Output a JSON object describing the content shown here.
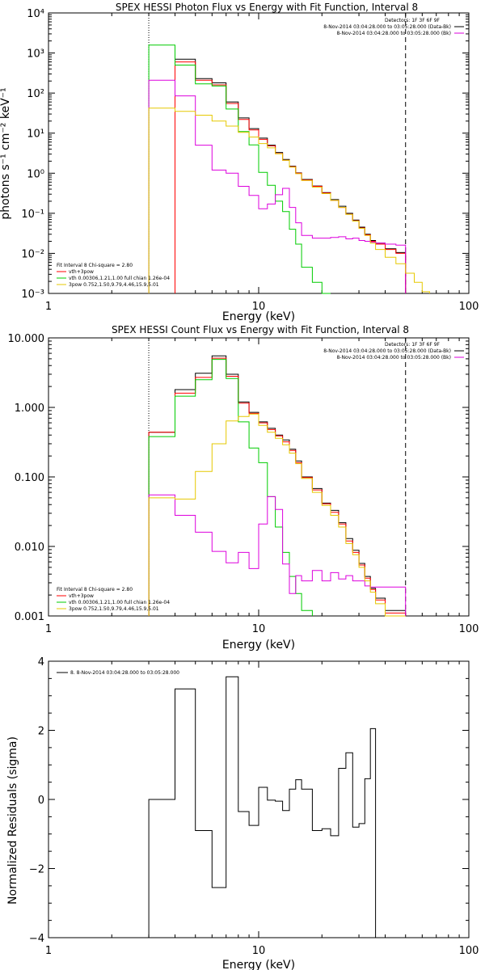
{
  "chart_data": [
    {
      "type": "line",
      "title": "SPEX HESSI Photon Flux vs Energy with Fit Function, Interval 8",
      "xlabel": "Energy (keV)",
      "ylabel": "photons s⁻¹ cm⁻² keV⁻¹",
      "xscale": "log",
      "yscale": "log",
      "xlim": [
        1,
        100
      ],
      "ylim": [
        0.001,
        10000
      ],
      "xticks": [
        {
          "v": 1,
          "label": "1"
        },
        {
          "v": 10,
          "label": "10"
        },
        {
          "v": 100,
          "label": "100"
        }
      ],
      "yticks": [
        {
          "v": 0.001,
          "label": "10⁻³"
        },
        {
          "v": 0.01,
          "label": "10⁻²"
        },
        {
          "v": 0.1,
          "label": "10⁻¹"
        },
        {
          "v": 1,
          "label": "10⁰"
        },
        {
          "v": 10,
          "label": "10¹"
        },
        {
          "v": 100,
          "label": "10²"
        },
        {
          "v": 1000,
          "label": "10³"
        },
        {
          "v": 10000,
          "label": "10⁴"
        }
      ],
      "vlines": [
        {
          "x": 3,
          "style": "dotted"
        },
        {
          "x": 50,
          "style": "dashed"
        }
      ],
      "edges": [
        3,
        4,
        5,
        6,
        7,
        8,
        9,
        10,
        11,
        12,
        13,
        14,
        15,
        16,
        18,
        20,
        22,
        24,
        26,
        28,
        30,
        32,
        34,
        36,
        40,
        45,
        50,
        55,
        60,
        65
      ],
      "series": [
        {
          "name": "",
          "color": "#000000",
          "values": [
            null,
            700,
            230,
            180,
            60,
            24,
            13,
            7.5,
            5.0,
            3.3,
            2.2,
            1.5,
            1.02,
            0.7,
            0.48,
            0.33,
            0.22,
            0.15,
            0.1,
            0.068,
            0.045,
            0.03,
            0.021,
            0.018,
            0.013,
            0.0105,
            null,
            null,
            null
          ]
        },
        {
          "name": "",
          "color": "#ff0000",
          "values": [
            null,
            600,
            210,
            160,
            55,
            22,
            12,
            7.0,
            4.8,
            3.1,
            2.1,
            1.45,
            1.0,
            0.68,
            0.47,
            0.32,
            0.21,
            0.14,
            0.095,
            0.065,
            0.043,
            0.029,
            0.02,
            0.017,
            0.0125,
            0.01,
            null,
            null,
            null
          ]
        },
        {
          "name": "",
          "color": "#00cc00",
          "values": [
            1580,
            500,
            170,
            150,
            40,
            11,
            5.1,
            1.05,
            0.5,
            0.2,
            0.11,
            0.04,
            0.017,
            0.0045,
            0.0019,
            0.0005,
            null,
            null,
            null,
            null,
            null,
            null,
            null,
            null,
            null,
            null,
            null,
            null,
            null
          ]
        },
        {
          "name": "",
          "color": "#dd00dd",
          "values": [
            210,
            85,
            5.0,
            1.2,
            1.0,
            0.47,
            0.28,
            0.13,
            0.17,
            0.29,
            0.42,
            0.14,
            0.058,
            0.028,
            0.024,
            0.024,
            0.025,
            0.026,
            0.023,
            0.024,
            0.021,
            0.02,
            0.019,
            0.018,
            0.017,
            0.016,
            null,
            null,
            null
          ]
        },
        {
          "name": "",
          "color": "#e6c800",
          "values": [
            42,
            35,
            28,
            20,
            15,
            10.5,
            8.0,
            5.5,
            4.3,
            3.05,
            2.1,
            1.42,
            0.97,
            0.66,
            0.45,
            0.31,
            0.21,
            0.14,
            0.094,
            0.064,
            0.042,
            0.028,
            0.018,
            0.0125,
            0.008,
            0.0055,
            0.0032,
            0.0019,
            0.0011
          ]
        }
      ],
      "legend_top": {
        "text": "Detectors: 1F 3F 6F 9F",
        "entries": [
          {
            "color": "#000000",
            "label": "8-Nov-2014 03:04:28.000 to 03:05:28.000 (Data-Bk)"
          },
          {
            "color": "#dd00dd",
            "label": "8-Nov-2014 03:04:28.000 to 03:05:28.000 (Bk)"
          }
        ]
      },
      "legend_bottom": {
        "text": "Fit Interval 8   Chi-square = 2.80",
        "entries": [
          {
            "color": "#ff0000",
            "label": "vth+3pow"
          },
          {
            "color": "#00cc00",
            "label": "vth 0.00306,1.21,1.00  full chian 1.26e-04"
          },
          {
            "color": "#e6c800",
            "label": "3pow 0.752,1.50,9.79,4.46,15.9,5.01"
          }
        ]
      }
    },
    {
      "type": "line",
      "title": "SPEX HESSI Count Flux vs Energy with Fit Function, Interval 8",
      "xlabel": "Energy (keV)",
      "ylabel": "",
      "xscale": "log",
      "yscale": "log",
      "xlim": [
        1,
        100
      ],
      "ylim": [
        0.001,
        10
      ],
      "xticks": [
        {
          "v": 1,
          "label": "1"
        },
        {
          "v": 10,
          "label": "10"
        },
        {
          "v": 100,
          "label": "100"
        }
      ],
      "yticks": [
        {
          "v": 0.001,
          "label": "0.001"
        },
        {
          "v": 0.01,
          "label": "0.010"
        },
        {
          "v": 0.1,
          "label": "0.100"
        },
        {
          "v": 1,
          "label": "1.000"
        },
        {
          "v": 10,
          "label": "10.000"
        }
      ],
      "vlines": [
        {
          "x": 3,
          "style": "dotted"
        },
        {
          "x": 50,
          "style": "dashed"
        }
      ],
      "edges": [
        3,
        4,
        5,
        6,
        7,
        8,
        9,
        10,
        11,
        12,
        13,
        14,
        15,
        16,
        18,
        20,
        22,
        24,
        26,
        28,
        30,
        32,
        34,
        36,
        40,
        45,
        50
      ],
      "series": [
        {
          "name": "",
          "color": "#000000",
          "values": [
            0.44,
            1.8,
            3.1,
            5.5,
            3.0,
            1.2,
            0.85,
            0.62,
            0.5,
            0.4,
            0.34,
            0.25,
            0.17,
            0.1,
            0.068,
            0.042,
            0.033,
            0.022,
            0.013,
            0.0088,
            0.0057,
            0.0037,
            0.0025,
            0.0018,
            0.0012,
            0.0012
          ]
        },
        {
          "name": "",
          "color": "#ff0000",
          "values": [
            0.44,
            1.6,
            2.7,
            5.1,
            2.8,
            1.15,
            0.82,
            0.6,
            0.48,
            0.39,
            0.32,
            0.24,
            0.16,
            0.098,
            0.065,
            0.041,
            0.031,
            0.021,
            0.012,
            0.0082,
            0.0054,
            0.0035,
            0.0024,
            0.0017,
            0.0011,
            0.0011
          ]
        },
        {
          "name": "",
          "color": "#00cc00",
          "values": [
            0.38,
            1.45,
            2.5,
            4.9,
            2.6,
            0.62,
            0.26,
            0.16,
            0.052,
            0.019,
            0.0082,
            0.0037,
            0.0021,
            0.0012,
            null,
            null,
            null,
            null,
            null,
            null,
            null,
            null,
            null,
            null,
            null,
            null
          ]
        },
        {
          "name": "",
          "color": "#dd00dd",
          "values": [
            0.055,
            0.028,
            0.016,
            0.0085,
            0.0058,
            0.0082,
            0.0048,
            0.021,
            0.052,
            0.034,
            0.0056,
            0.0021,
            0.0038,
            0.0032,
            0.0045,
            0.0032,
            0.0042,
            0.0034,
            0.0038,
            0.0032,
            0.0032,
            0.0027,
            0.0026,
            0.0026,
            0.0026,
            0.0026
          ]
        },
        {
          "name": "",
          "color": "#e6c800",
          "values": [
            0.05,
            0.048,
            0.12,
            0.3,
            0.64,
            0.74,
            0.8,
            0.55,
            0.44,
            0.36,
            0.29,
            0.22,
            0.155,
            0.095,
            0.06,
            0.039,
            0.028,
            0.019,
            0.011,
            0.0076,
            0.005,
            0.0032,
            0.0022,
            0.0015,
            0.001,
            0.0009
          ]
        }
      ],
      "legend_top": {
        "text": "Detectors: 1F 3F 6F 9F",
        "entries": [
          {
            "color": "#000000",
            "label": "8-Nov-2014 03:04:28.000 to 03:05:28.000 (Data-Bk)"
          },
          {
            "color": "#dd00dd",
            "label": "8-Nov-2014 03:04:28.000 to 03:05:28.000 (Bk)"
          }
        ]
      },
      "legend_bottom": {
        "text": "Fit Interval 8   Chi-square = 2.80",
        "entries": [
          {
            "color": "#ff0000",
            "label": "vth+3pow"
          },
          {
            "color": "#00cc00",
            "label": "vth 0.00306,1.21,1.00  full chian 1.26e-04"
          },
          {
            "color": "#e6c800",
            "label": "3pow 0.752,1.50,9.79,4.46,15.9,5.01"
          }
        ]
      }
    },
    {
      "type": "line",
      "title": "",
      "xlabel": "Energy (keV)",
      "ylabel": "Normalized Residuals (sigma)",
      "xscale": "log",
      "yscale": "linear",
      "xlim": [
        1,
        100
      ],
      "ylim": [
        -4,
        4
      ],
      "xticks": [
        {
          "v": 1,
          "label": "1"
        },
        {
          "v": 10,
          "label": "10"
        },
        {
          "v": 100,
          "label": "100"
        }
      ],
      "yticks": [
        {
          "v": -4,
          "label": "−4"
        },
        {
          "v": -2,
          "label": "−2"
        },
        {
          "v": 0,
          "label": "0"
        },
        {
          "v": 2,
          "label": "2"
        },
        {
          "v": 4,
          "label": "4"
        }
      ],
      "vlines": [],
      "edges": [
        3,
        4,
        5,
        6,
        7,
        8,
        9,
        10,
        11,
        12,
        13,
        14,
        15,
        16,
        18,
        20,
        22,
        24,
        26,
        28,
        30,
        32,
        34,
        36,
        40,
        45,
        50
      ],
      "baseline": -4,
      "series": [
        {
          "name": "",
          "color": "#000000",
          "values": [
            0,
            3.2,
            -0.9,
            -2.55,
            3.55,
            -0.35,
            -0.75,
            0.35,
            -0.02,
            -0.05,
            -0.32,
            0.3,
            0.57,
            0.3,
            -0.9,
            -0.85,
            -1.05,
            0.9,
            1.35,
            -0.8,
            -0.7,
            0.6,
            2.05,
            null,
            null,
            null
          ]
        }
      ],
      "legend_top": {
        "text": "",
        "entries": [
          {
            "color": "#000000",
            "label": "8. 8-Nov-2014 03:04:28.000 to 03:05:28.000"
          }
        ]
      }
    }
  ]
}
